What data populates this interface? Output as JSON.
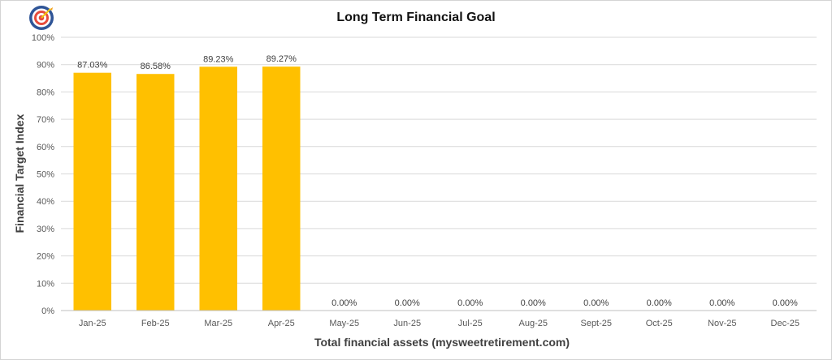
{
  "logo": {
    "icon": "target-icon"
  },
  "chart_data": {
    "type": "bar",
    "title": "Long Term Financial Goal",
    "xlabel": "Total financial assets (mysweetretirement.com)",
    "ylabel": "Financial Target Index",
    "categories": [
      "Jan-25",
      "Feb-25",
      "Mar-25",
      "Apr-25",
      "May-25",
      "Jun-25",
      "Jul-25",
      "Aug-25",
      "Sept-25",
      "Oct-25",
      "Nov-25",
      "Dec-25"
    ],
    "values": [
      87.03,
      86.58,
      89.23,
      89.27,
      0,
      0,
      0,
      0,
      0,
      0,
      0,
      0
    ],
    "data_labels": [
      "87.03%",
      "86.58%",
      "89.23%",
      "89.27%",
      "0.00%",
      "0.00%",
      "0.00%",
      "0.00%",
      "0.00%",
      "0.00%",
      "0.00%",
      "0.00%"
    ],
    "yticks": [
      0,
      10,
      20,
      30,
      40,
      50,
      60,
      70,
      80,
      90,
      100
    ],
    "ytick_labels": [
      "0%",
      "10%",
      "20%",
      "30%",
      "40%",
      "50%",
      "60%",
      "70%",
      "80%",
      "90%",
      "100%"
    ],
    "ylim": [
      0,
      100
    ],
    "grid": true,
    "legend": "none",
    "colors": {
      "bar": "#FFC000",
      "grid": "#d9d9d9",
      "axis": "#bfbfbf"
    }
  }
}
